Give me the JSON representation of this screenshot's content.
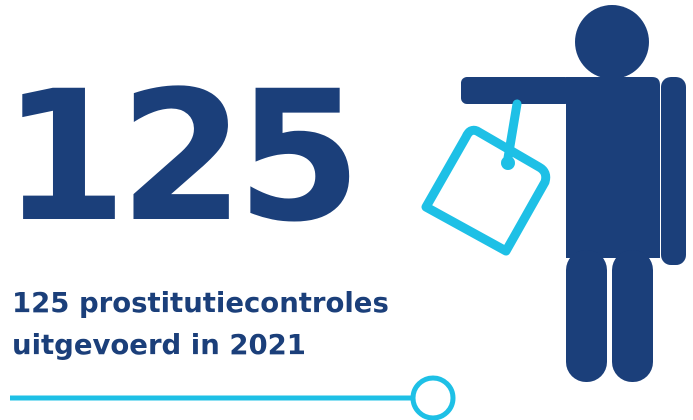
{
  "headline_number": "125",
  "caption": {
    "line1": "125 prostitutiecontroles",
    "line2": "uitgevoerd in 2021"
  },
  "icons": {
    "person": "person-icon",
    "price_tag": "price-tag-icon",
    "timeline": "timeline-line-icon"
  },
  "colors": {
    "navy": "#1b3f7a",
    "cyan": "#1ec0e6"
  }
}
